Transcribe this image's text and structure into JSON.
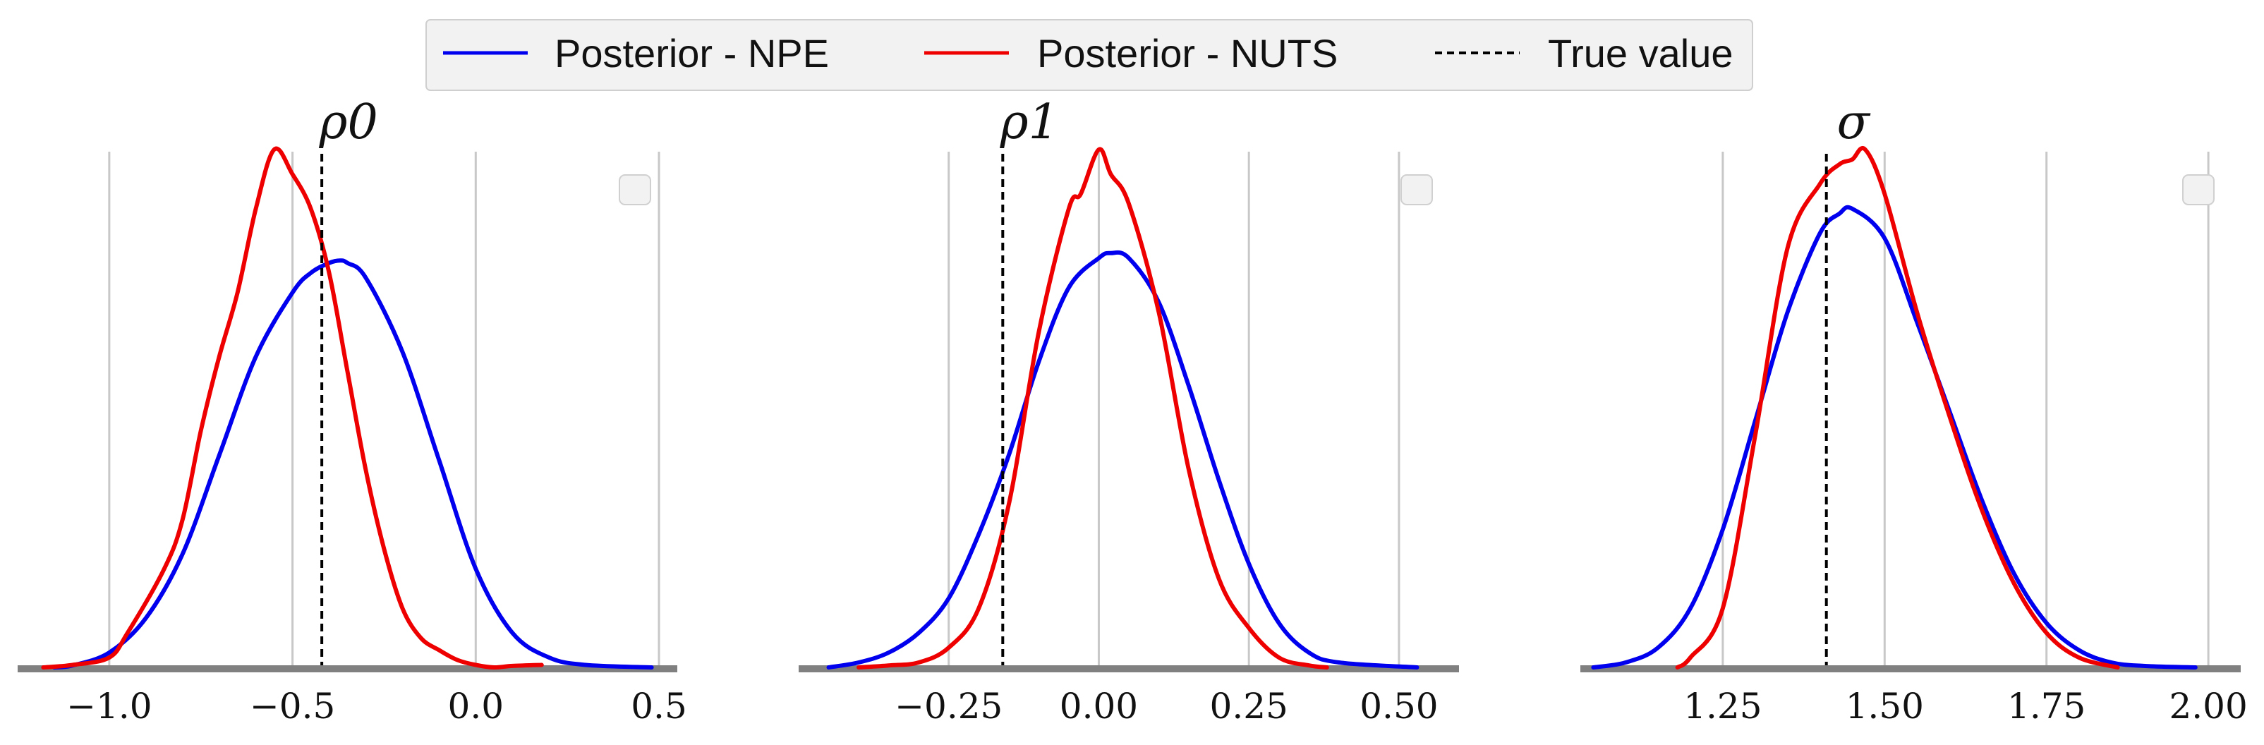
{
  "legend": {
    "entries": [
      {
        "label": "Posterior - NPE",
        "color": "#0000ee",
        "style": "solid"
      },
      {
        "label": "Posterior - NUTS",
        "color": "#ee0000",
        "style": "solid"
      },
      {
        "label": "True value",
        "color": "#000000",
        "style": "dashed"
      }
    ],
    "placement": "top-center"
  },
  "colors": {
    "npe": "#0000ee",
    "nuts": "#ee0000",
    "true_value": "#000000",
    "grid": "#c8c8c8",
    "baseline": "#808080",
    "legend_bg": "#f2f2f2"
  },
  "chart_data": [
    {
      "type": "line",
      "title": "ρ0",
      "xlim": [
        -1.25,
        0.55
      ],
      "ticks": [
        -1.0,
        -0.5,
        0.0,
        0.5
      ],
      "tick_labels": [
        "−1.0",
        "−0.5",
        "0.0",
        "0.5"
      ],
      "grid": "vertical",
      "true_value": -0.42,
      "series": [
        {
          "name": "Posterior - NPE",
          "x": [
            -1.15,
            -1.1,
            -1.0,
            -0.9,
            -0.8,
            -0.7,
            -0.6,
            -0.5,
            -0.45,
            -0.4,
            -0.37,
            -0.35,
            -0.3,
            -0.2,
            -0.1,
            0.0,
            0.1,
            0.2,
            0.3,
            0.48
          ],
          "y": [
            0.0,
            0.004,
            0.03,
            0.1,
            0.23,
            0.43,
            0.63,
            0.76,
            0.8,
            0.82,
            0.825,
            0.82,
            0.79,
            0.64,
            0.42,
            0.2,
            0.07,
            0.02,
            0.005,
            0.0
          ]
        },
        {
          "name": "Posterior - NUTS",
          "x": [
            -1.18,
            -1.1,
            -1.0,
            -0.95,
            -0.85,
            -0.8,
            -0.75,
            -0.7,
            -0.65,
            -0.6,
            -0.55,
            -0.5,
            -0.45,
            -0.4,
            -0.35,
            -0.3,
            -0.25,
            -0.2,
            -0.15,
            -0.1,
            -0.05,
            0.0,
            0.05,
            0.1,
            0.18
          ],
          "y": [
            0.0,
            0.005,
            0.02,
            0.07,
            0.2,
            0.3,
            0.48,
            0.63,
            0.76,
            0.93,
            1.05,
            1.0,
            0.93,
            0.8,
            0.6,
            0.4,
            0.24,
            0.12,
            0.06,
            0.035,
            0.015,
            0.005,
            0.0,
            0.003,
            0.005
          ]
        }
      ]
    },
    {
      "type": "line",
      "title": "ρ1",
      "xlim": [
        -0.5,
        0.6
      ],
      "ticks": [
        -0.25,
        0.0,
        0.25,
        0.5
      ],
      "tick_labels": [
        "−0.25",
        "0.00",
        "0.25",
        "0.50"
      ],
      "grid": "vertical",
      "true_value": -0.16,
      "series": [
        {
          "name": "Posterior - NPE",
          "x": [
            -0.45,
            -0.4,
            -0.35,
            -0.3,
            -0.25,
            -0.2,
            -0.15,
            -0.1,
            -0.05,
            0.0,
            0.02,
            0.05,
            0.1,
            0.15,
            0.2,
            0.25,
            0.3,
            0.35,
            0.4,
            0.53
          ],
          "y": [
            0.0,
            0.01,
            0.03,
            0.07,
            0.14,
            0.27,
            0.43,
            0.62,
            0.77,
            0.83,
            0.84,
            0.83,
            0.74,
            0.57,
            0.38,
            0.21,
            0.09,
            0.03,
            0.01,
            0.0
          ]
        },
        {
          "name": "Posterior - NUTS",
          "x": [
            -0.4,
            -0.35,
            -0.3,
            -0.25,
            -0.2,
            -0.15,
            -0.1,
            -0.05,
            -0.03,
            0.0,
            0.02,
            0.05,
            0.1,
            0.15,
            0.2,
            0.25,
            0.3,
            0.35,
            0.38
          ],
          "y": [
            0.0,
            0.004,
            0.01,
            0.04,
            0.12,
            0.33,
            0.68,
            0.93,
            0.96,
            1.05,
            1.0,
            0.94,
            0.72,
            0.4,
            0.18,
            0.08,
            0.02,
            0.004,
            0.0
          ]
        }
      ]
    },
    {
      "type": "line",
      "title": "σ",
      "xlim": [
        1.03,
        2.05
      ],
      "ticks": [
        1.25,
        1.5,
        1.75,
        2.0
      ],
      "tick_labels": [
        "1.25",
        "1.50",
        "1.75",
        "2.00"
      ],
      "grid": "vertical",
      "true_value": 1.41,
      "series": [
        {
          "name": "Posterior - NPE",
          "x": [
            1.05,
            1.1,
            1.15,
            1.2,
            1.25,
            1.3,
            1.35,
            1.4,
            1.43,
            1.45,
            1.5,
            1.55,
            1.6,
            1.65,
            1.7,
            1.75,
            1.8,
            1.85,
            1.9,
            1.98
          ],
          "y": [
            0.0,
            0.01,
            0.04,
            0.12,
            0.28,
            0.5,
            0.72,
            0.88,
            0.92,
            0.93,
            0.87,
            0.7,
            0.52,
            0.34,
            0.19,
            0.09,
            0.035,
            0.01,
            0.003,
            0.0
          ]
        },
        {
          "name": "Posterior - NUTS",
          "x": [
            1.18,
            1.2,
            1.25,
            1.3,
            1.35,
            1.4,
            1.43,
            1.45,
            1.47,
            1.5,
            1.55,
            1.6,
            1.65,
            1.7,
            1.75,
            1.8,
            1.86
          ],
          "y": [
            0.0,
            0.02,
            0.12,
            0.47,
            0.85,
            0.98,
            1.02,
            1.03,
            1.05,
            0.96,
            0.72,
            0.51,
            0.32,
            0.17,
            0.07,
            0.02,
            0.0
          ]
        }
      ]
    }
  ]
}
